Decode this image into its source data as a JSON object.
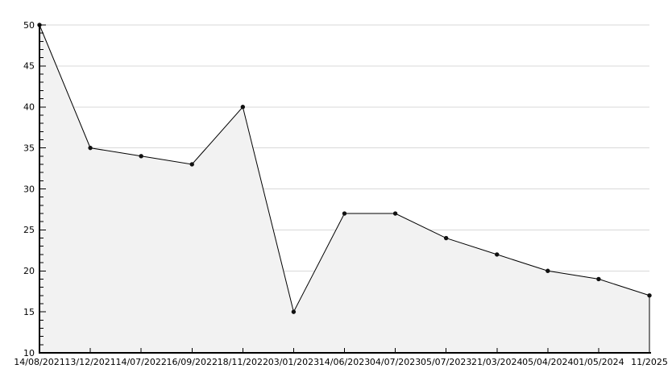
{
  "chart_data": {
    "type": "area",
    "title": "",
    "xlabel": "",
    "ylabel": "",
    "categories": [
      "14/08/2021",
      "13/12/2021",
      "14/07/2022",
      "16/09/2022",
      "18/11/2022",
      "03/01/2023",
      "14/06/2023",
      "04/07/2023",
      "05/07/2023",
      "21/03/2024",
      "05/04/2024",
      "01/05/2024",
      "11/2025"
    ],
    "values": [
      50,
      35,
      34,
      33,
      40,
      15,
      27,
      27,
      24,
      22,
      20,
      19,
      17
    ],
    "ylim": [
      10,
      50
    ],
    "y_tick_step": 5,
    "y_minor_tick_step": 1,
    "y_tick_labels": [
      "10",
      "15",
      "20",
      "25",
      "30",
      "35",
      "40",
      "45",
      "50"
    ],
    "grid": "horizontal-major",
    "legend_position": "none",
    "marker": "filled-circle",
    "line_style": "solid",
    "colors": {
      "line": "#000000",
      "marker": "#111111",
      "area_fill": "#f2f2f2",
      "grid": "#d9d9d9",
      "axis": "#000000",
      "tick_text": "#000000",
      "background": "#ffffff"
    }
  }
}
